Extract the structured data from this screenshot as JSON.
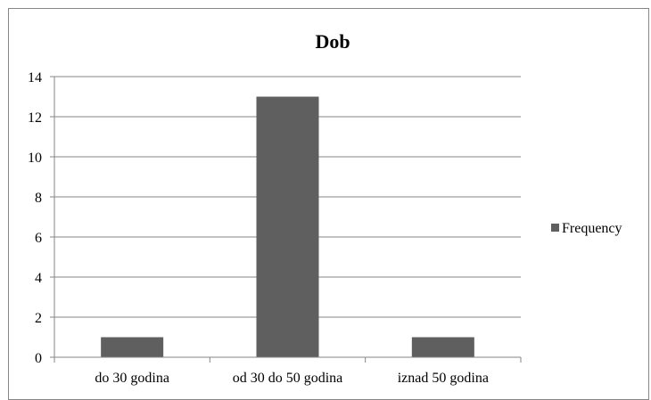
{
  "chart_data": {
    "type": "bar",
    "title": "Dob",
    "xlabel": "",
    "ylabel": "",
    "categories": [
      "do 30 godina",
      "od 30 do 50 godina",
      "iznad 50 godina"
    ],
    "series": [
      {
        "name": "Frequency",
        "values": [
          1,
          13,
          1
        ],
        "color": "#5f5f5f"
      }
    ],
    "ylim": [
      0,
      14
    ],
    "yticks": [
      "0",
      "2",
      "4",
      "6",
      "8",
      "10",
      "12",
      "14"
    ],
    "grid": true,
    "legend_position": "right"
  }
}
